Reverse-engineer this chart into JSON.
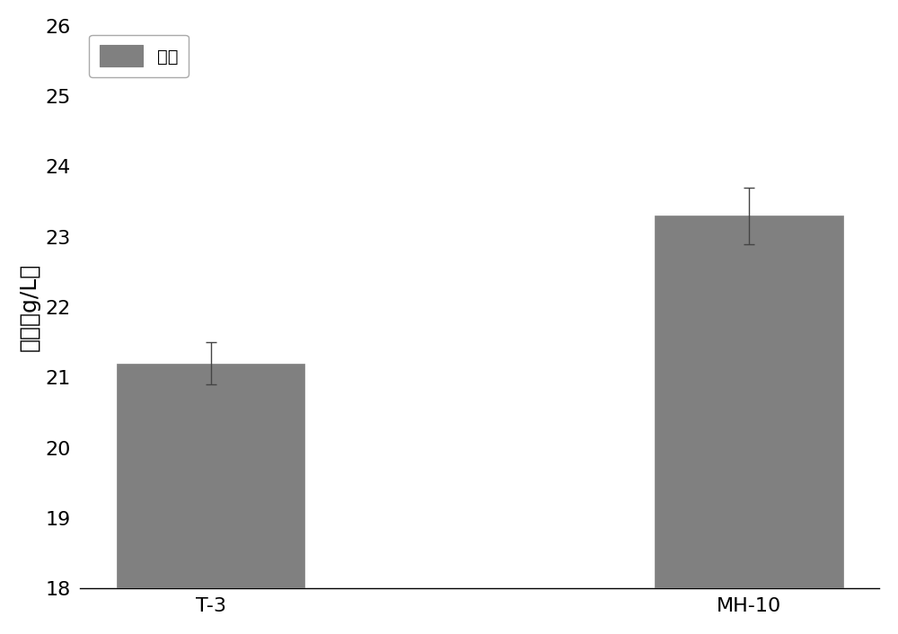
{
  "categories": [
    "T-3",
    "MH-10"
  ],
  "values": [
    21.2,
    23.3
  ],
  "errors": [
    0.3,
    0.4
  ],
  "bar_color": "#808080",
  "bar_edgecolor": "#808080",
  "bar_width": 0.35,
  "ylabel": "产量（g/L）",
  "ylim": [
    18,
    26
  ],
  "yticks": [
    18,
    19,
    20,
    21,
    22,
    23,
    24,
    25,
    26
  ],
  "legend_label": "产量",
  "background_color": "#ffffff",
  "ylabel_fontsize": 18,
  "tick_fontsize": 16,
  "legend_fontsize": 14,
  "figsize": [
    10.0,
    7.06
  ],
  "dpi": 100,
  "bar_positions": [
    0.25,
    0.75
  ]
}
